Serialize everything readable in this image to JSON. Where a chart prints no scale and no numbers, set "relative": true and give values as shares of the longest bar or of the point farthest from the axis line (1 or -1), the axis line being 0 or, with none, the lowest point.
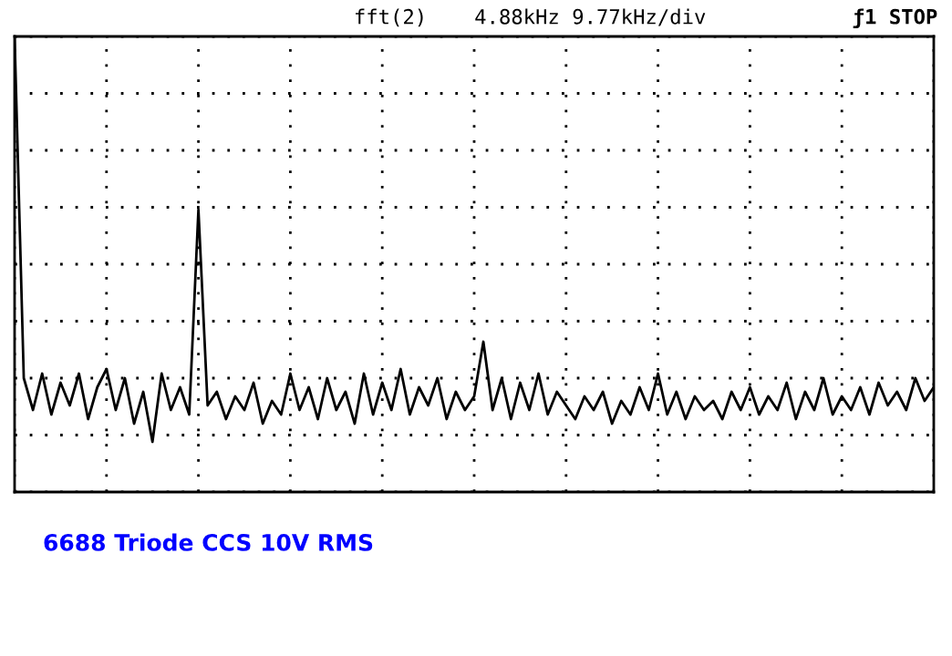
{
  "chart_data": {
    "type": "line",
    "relative": true,
    "grid": true,
    "legend": false,
    "annotations": [
      "fft(2)",
      "4.88kHz 9.77kHz/div",
      "ƒ1 STOP",
      "6688 Triode CCS 10V RMS"
    ],
    "categories": [
      null,
      null,
      null,
      null,
      null,
      null,
      null,
      null,
      null,
      null,
      null,
      null,
      null,
      null,
      null,
      null,
      null,
      null,
      null,
      null,
      null,
      null,
      null,
      null,
      null,
      null,
      null,
      null,
      null,
      null,
      null,
      null,
      null,
      null,
      null,
      null,
      null,
      null,
      null,
      null,
      null,
      null,
      null,
      null,
      null,
      null,
      null,
      null,
      null,
      null,
      null,
      null,
      null,
      null,
      null,
      null,
      null,
      null,
      null,
      null,
      null,
      null,
      null,
      null,
      null,
      null,
      null,
      null,
      null,
      null,
      null,
      null,
      null,
      null,
      null,
      null,
      null,
      null,
      null,
      null,
      null,
      null,
      null,
      null,
      null,
      null,
      null,
      null,
      null,
      null,
      null,
      null,
      null,
      null,
      null,
      null,
      null,
      null,
      null,
      null,
      null
    ],
    "series": [
      {
        "color": "#000000",
        "values": [
          1.0,
          0.25,
          0.18,
          0.26,
          0.17,
          0.24,
          0.19,
          0.26,
          0.16,
          0.23,
          0.27,
          0.18,
          0.25,
          0.15,
          0.22,
          0.11,
          0.26,
          0.18,
          0.23,
          0.17,
          0.62,
          0.19,
          0.22,
          0.16,
          0.21,
          0.18,
          0.24,
          0.15,
          0.2,
          0.17,
          0.26,
          0.18,
          0.23,
          0.16,
          0.25,
          0.18,
          0.22,
          0.15,
          0.26,
          0.17,
          0.24,
          0.18,
          0.27,
          0.17,
          0.23,
          0.19,
          0.25,
          0.16,
          0.22,
          0.18,
          0.21,
          0.33,
          0.18,
          0.25,
          0.16,
          0.24,
          0.18,
          0.26,
          0.17,
          0.22,
          0.19,
          0.16,
          0.21,
          0.18,
          0.22,
          0.15,
          0.2,
          0.17,
          0.23,
          0.18,
          0.26,
          0.17,
          0.22,
          0.16,
          0.21,
          0.18,
          0.2,
          0.16,
          0.22,
          0.18,
          0.23,
          0.17,
          0.21,
          0.18,
          0.24,
          0.16,
          0.22,
          0.18,
          0.25,
          0.17,
          0.21,
          0.18,
          0.23,
          0.17,
          0.24,
          0.19,
          0.22,
          0.18,
          0.25,
          0.2,
          0.23
        ]
      }
    ]
  }
}
